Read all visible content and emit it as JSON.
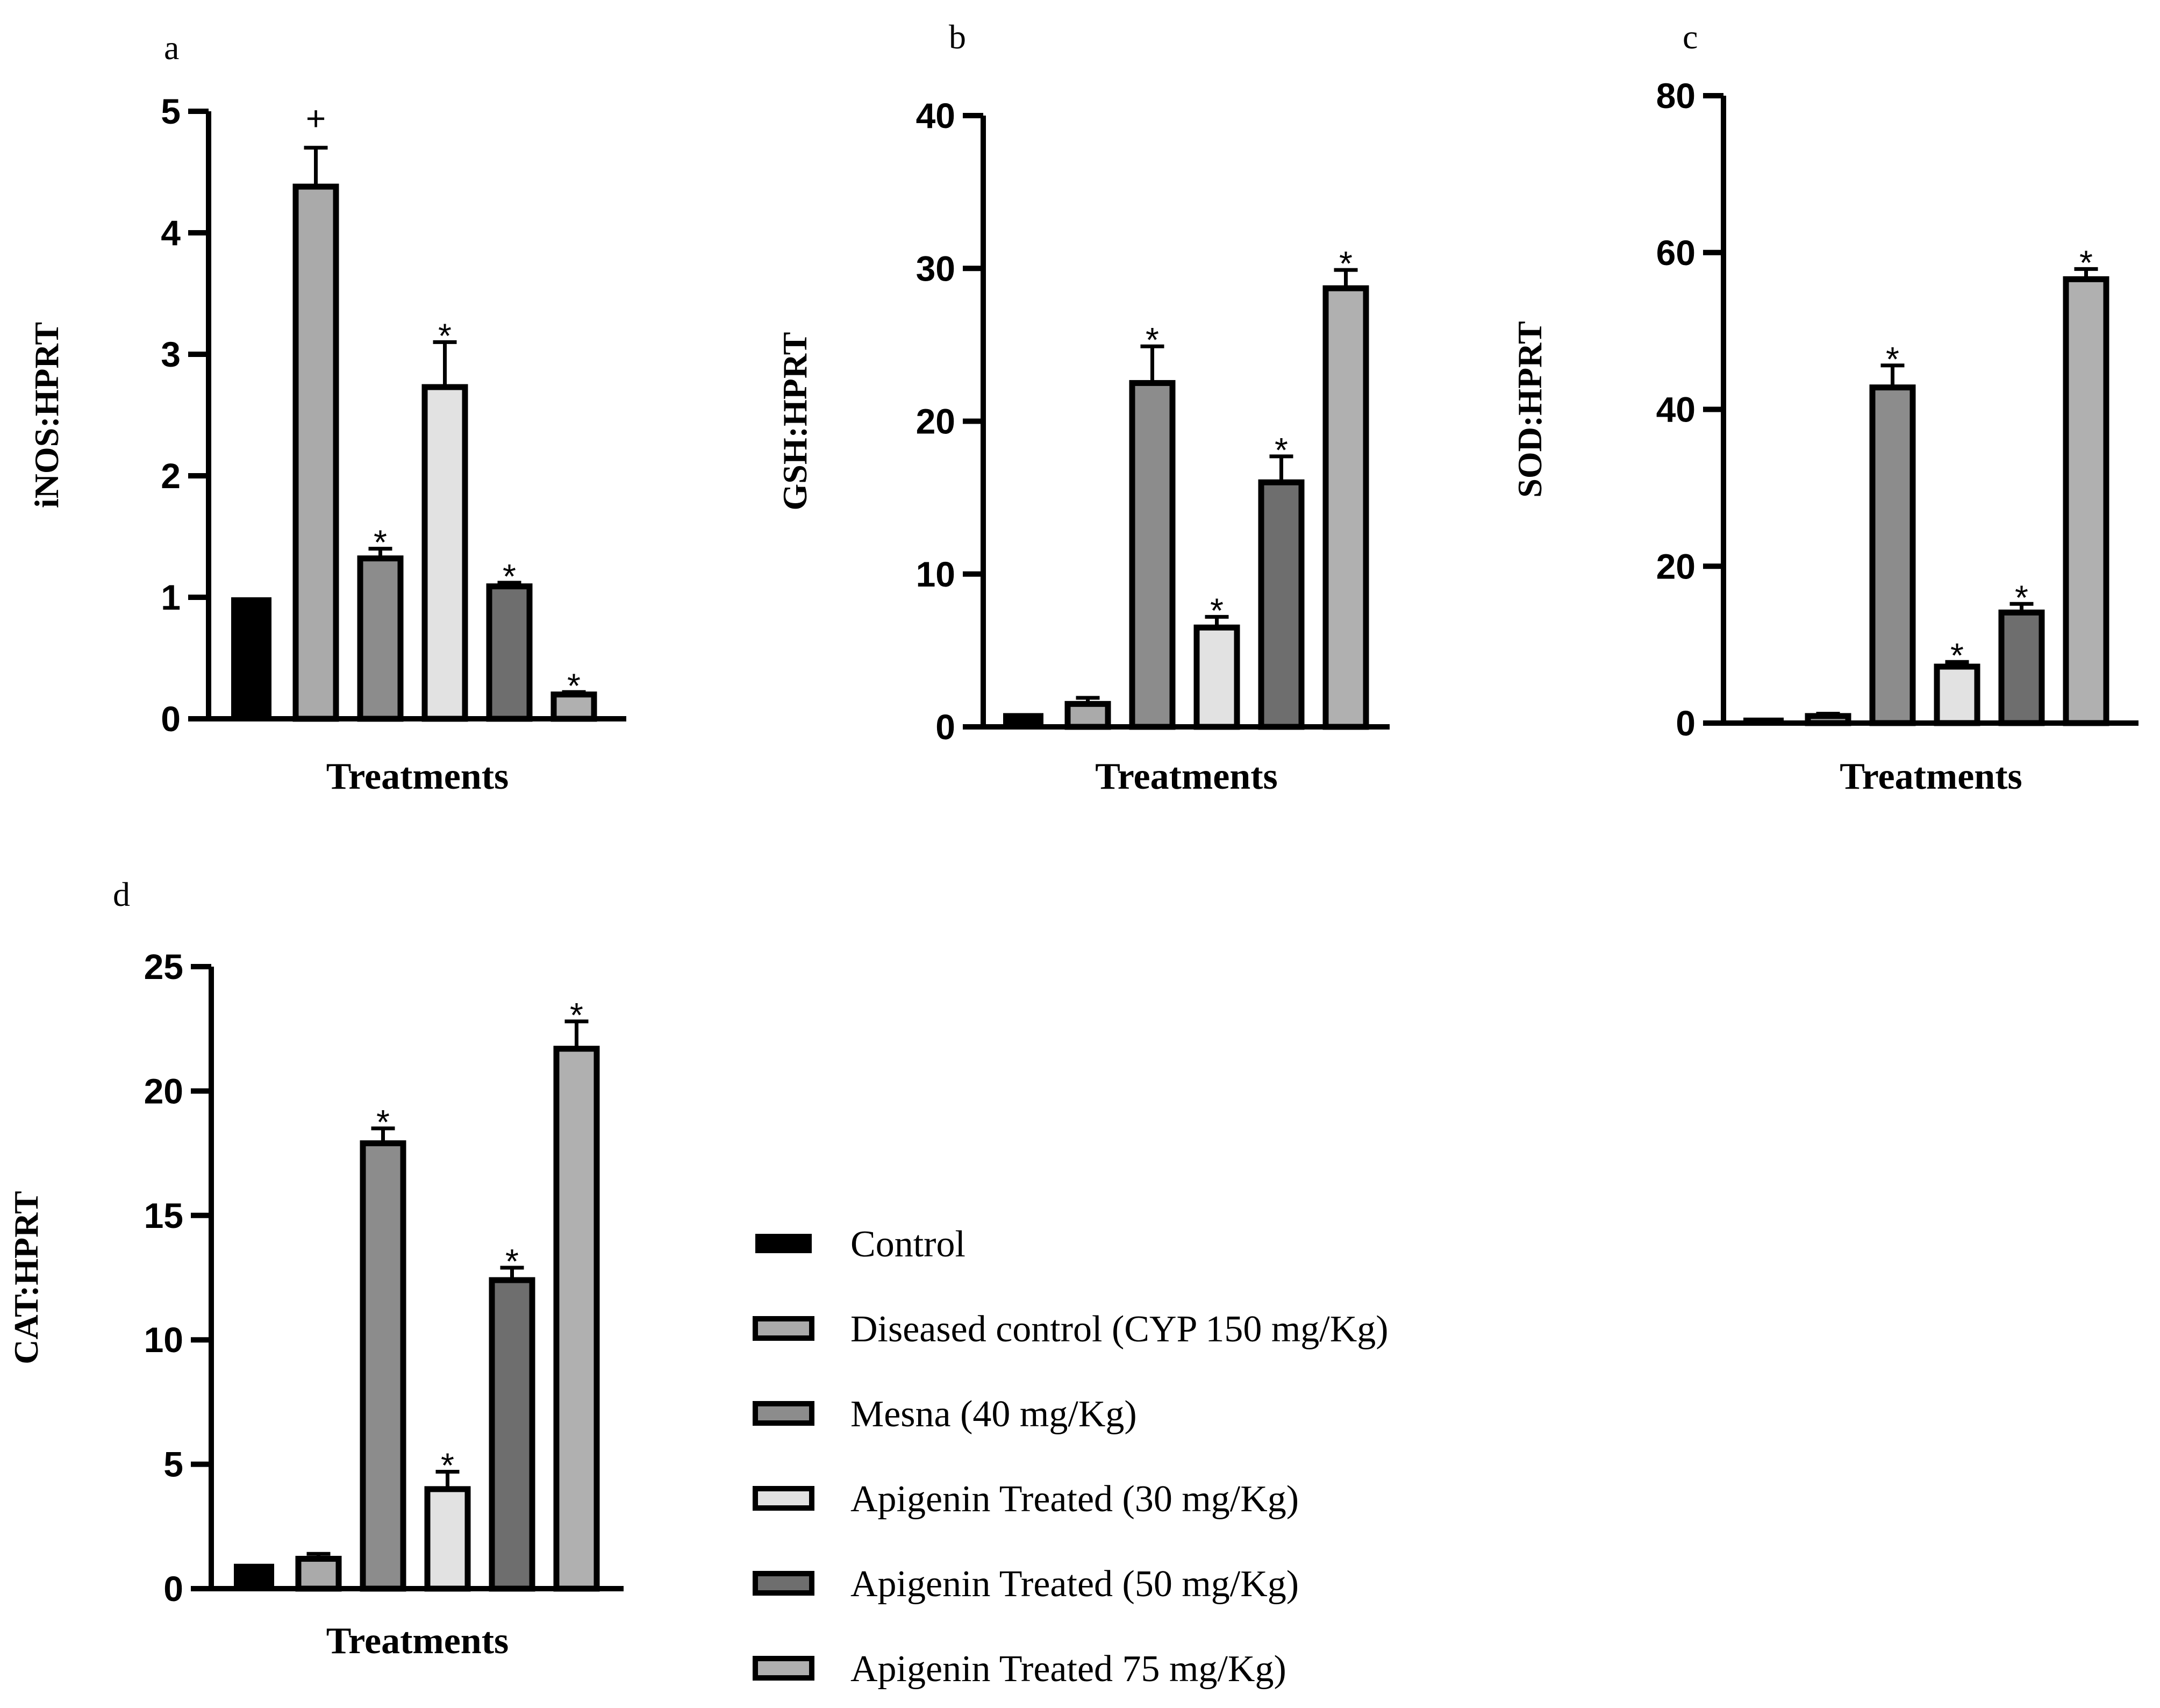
{
  "colors": {
    "control": "#000000",
    "diseased": "#aaaaaa",
    "mesna": "#8c8c8c",
    "apigenin30": "#e2e2e2",
    "apigenin50": "#6e6e6e",
    "apigenin75": "#b0b0b0",
    "stroke": "#000000"
  },
  "legend": {
    "items": [
      "Control",
      "Diseased control (CYP 150 mg/Kg)",
      "Mesna (40 mg/Kg)",
      "Apigenin Treated (30 mg/Kg)",
      "Apigenin Treated (50 mg/Kg)",
      "Apigenin Treated 75 mg/Kg)"
    ]
  },
  "chart_data": [
    {
      "type": "bar",
      "panel": "a",
      "ylabel": "iNOS:HPRT",
      "xlabel": "Treatments",
      "ylim": [
        0,
        5
      ],
      "yticks": [
        0,
        1,
        2,
        3,
        4,
        5
      ],
      "categories": [
        "Control",
        "Diseased control (CYP 150 mg/Kg)",
        "Mesna (40 mg/Kg)",
        "Apigenin Treated (30 mg/Kg)",
        "Apigenin Treated (50 mg/Kg)",
        "Apigenin Treated 75 mg/Kg)"
      ],
      "values": [
        1.0,
        4.38,
        1.32,
        2.73,
        1.09,
        0.2
      ],
      "errors": [
        0,
        0.32,
        0.08,
        0.37,
        0.03,
        0.02
      ],
      "annotations": [
        "",
        "+",
        "*",
        "*",
        "*",
        "*"
      ]
    },
    {
      "type": "bar",
      "panel": "b",
      "ylabel": "GSH:HPRT",
      "xlabel": "Treatments",
      "ylim": [
        0,
        40
      ],
      "yticks": [
        0,
        10,
        20,
        30,
        40
      ],
      "categories": [
        "Control",
        "Diseased control (CYP 150 mg/Kg)",
        "Mesna (40 mg/Kg)",
        "Apigenin Treated (30 mg/Kg)",
        "Apigenin Treated (50 mg/Kg)",
        "Apigenin Treated 75 mg/Kg)"
      ],
      "values": [
        0.9,
        1.5,
        22.5,
        6.5,
        16.0,
        28.7
      ],
      "errors": [
        0,
        0.4,
        2.4,
        0.7,
        1.7,
        1.2
      ],
      "annotations": [
        "",
        "",
        "*",
        "*",
        "*",
        "*"
      ]
    },
    {
      "type": "bar",
      "panel": "c",
      "ylabel": "SOD:HPRT",
      "xlabel": "Treatments",
      "ylim": [
        0,
        80
      ],
      "yticks": [
        0,
        20,
        40,
        60,
        80
      ],
      "categories": [
        "Control",
        "Diseased control (CYP 150 mg/Kg)",
        "Mesna (40 mg/Kg)",
        "Apigenin Treated (30 mg/Kg)",
        "Apigenin Treated (50 mg/Kg)",
        "Apigenin Treated 75 mg/Kg)"
      ],
      "values": [
        0.7,
        0.9,
        42.8,
        7.2,
        14.1,
        56.6
      ],
      "errors": [
        0,
        0.3,
        2.8,
        0.6,
        1.1,
        1.3
      ],
      "annotations": [
        "",
        "",
        "*",
        "*",
        "*",
        "*"
      ]
    },
    {
      "type": "bar",
      "panel": "d",
      "ylabel": "CAT:HPRT",
      "xlabel": "Treatments",
      "ylim": [
        0,
        25
      ],
      "yticks": [
        0,
        5,
        10,
        15,
        20,
        25
      ],
      "categories": [
        "Control",
        "Diseased control (CYP 150 mg/Kg)",
        "Mesna (40 mg/Kg)",
        "Apigenin Treated (30 mg/Kg)",
        "Apigenin Treated (50 mg/Kg)",
        "Apigenin Treated 75 mg/Kg)"
      ],
      "values": [
        1.0,
        1.2,
        17.9,
        4.0,
        12.4,
        21.7
      ],
      "errors": [
        0,
        0.2,
        0.6,
        0.7,
        0.5,
        1.1
      ],
      "annotations": [
        "",
        "",
        "*",
        "*",
        "*",
        "*"
      ]
    }
  ]
}
